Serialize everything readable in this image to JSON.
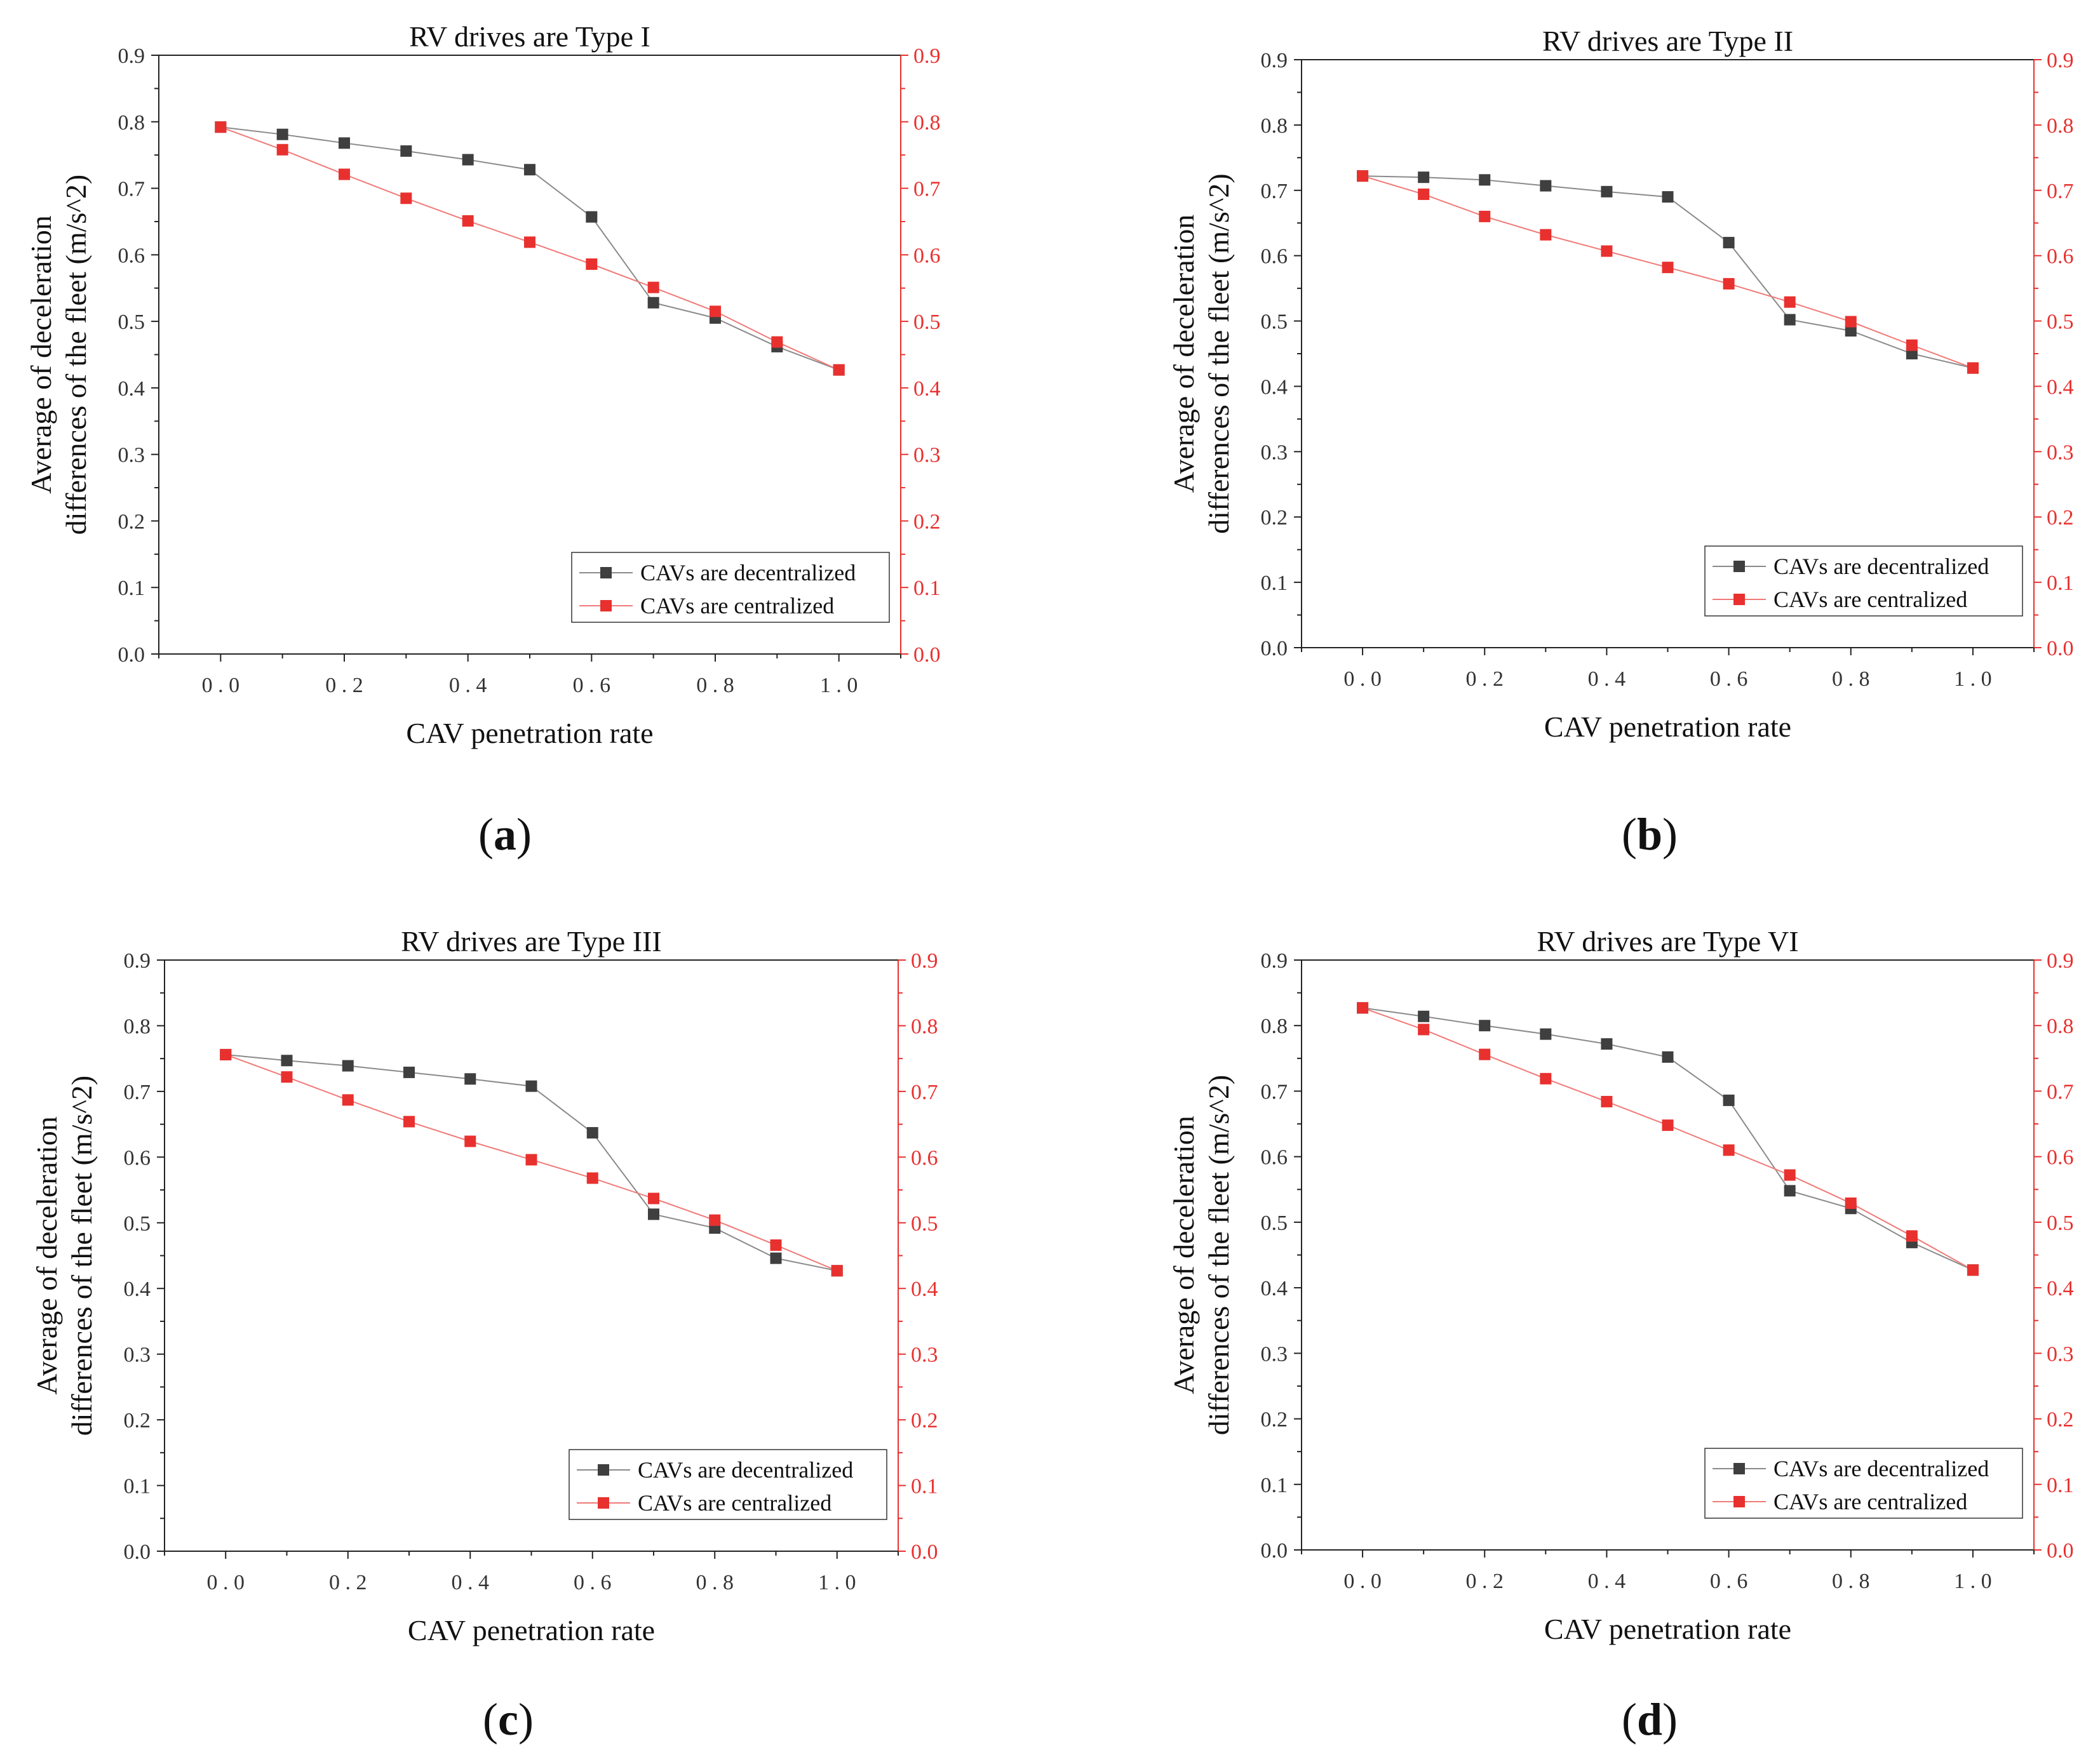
{
  "colors": {
    "decentralized": "#3f3f3f",
    "centralized": "#e8312f",
    "line_dec": "#8a8a8a",
    "line_cen": "#f07a78"
  },
  "chart_data": [
    {
      "type": "line",
      "panel": "a",
      "title": "RV drives are Type I",
      "xlabel": "CAV penetration rate",
      "ylabel": [
        "Average of deceleration",
        "differences of the fleet (m/s^2)"
      ],
      "xlim": [
        -0.1,
        1.1
      ],
      "ylim": [
        0.0,
        0.9
      ],
      "y2lim": [
        0.0,
        0.9
      ],
      "x": [
        0.0,
        0.1,
        0.2,
        0.3,
        0.4,
        0.5,
        0.6,
        0.7,
        0.8,
        0.9,
        1.0
      ],
      "xticks": [
        "0.0",
        "0.2",
        "0.4",
        "0.6",
        "0.8",
        "1.0"
      ],
      "yticks": [
        "0.0",
        "0.1",
        "0.2",
        "0.3",
        "0.4",
        "0.5",
        "0.6",
        "0.7",
        "0.8",
        "0.9"
      ],
      "legend": "bottom-right",
      "series": [
        {
          "name": "CAVs are decentralized",
          "values": [
            0.792,
            0.781,
            0.768,
            0.756,
            0.743,
            0.728,
            0.657,
            0.528,
            0.505,
            0.462,
            0.427
          ]
        },
        {
          "name": "CAVs are centralized",
          "values": [
            0.792,
            0.758,
            0.721,
            0.685,
            0.651,
            0.619,
            0.586,
            0.551,
            0.515,
            0.469,
            0.427
          ]
        }
      ]
    },
    {
      "type": "line",
      "panel": "b",
      "title": "RV drives are Type II",
      "xlabel": "CAV penetration rate",
      "ylabel": [
        "Average of deceleration",
        "differences of the fleet (m/s^2)"
      ],
      "xlim": [
        -0.1,
        1.1
      ],
      "ylim": [
        0.0,
        0.9
      ],
      "y2lim": [
        0.0,
        0.9
      ],
      "x": [
        0.0,
        0.1,
        0.2,
        0.3,
        0.4,
        0.5,
        0.6,
        0.7,
        0.8,
        0.9,
        1.0
      ],
      "xticks": [
        "0.0",
        "0.2",
        "0.4",
        "0.6",
        "0.8",
        "1.0"
      ],
      "yticks": [
        "0.0",
        "0.1",
        "0.2",
        "0.3",
        "0.4",
        "0.5",
        "0.6",
        "0.7",
        "0.8",
        "0.9"
      ],
      "legend": "bottom-right",
      "series": [
        {
          "name": "CAVs are decentralized",
          "values": [
            0.722,
            0.72,
            0.716,
            0.707,
            0.698,
            0.69,
            0.62,
            0.502,
            0.485,
            0.45,
            0.428
          ]
        },
        {
          "name": "CAVs are centralized",
          "values": [
            0.722,
            0.694,
            0.66,
            0.632,
            0.607,
            0.582,
            0.557,
            0.529,
            0.499,
            0.463,
            0.428
          ]
        }
      ]
    },
    {
      "type": "line",
      "panel": "c",
      "title": "RV drives are Type III",
      "xlabel": "CAV penetration rate",
      "ylabel": [
        "Average of deceleration",
        "differences of the fleet (m/s^2)"
      ],
      "xlim": [
        -0.1,
        1.1
      ],
      "ylim": [
        0.0,
        0.9
      ],
      "y2lim": [
        0.0,
        0.9
      ],
      "x": [
        0.0,
        0.1,
        0.2,
        0.3,
        0.4,
        0.5,
        0.6,
        0.7,
        0.8,
        0.9,
        1.0
      ],
      "xticks": [
        "0.0",
        "0.2",
        "0.4",
        "0.6",
        "0.8",
        "1.0"
      ],
      "yticks": [
        "0.0",
        "0.1",
        "0.2",
        "0.3",
        "0.4",
        "0.5",
        "0.6",
        "0.7",
        "0.8",
        "0.9"
      ],
      "legend": "bottom-right",
      "series": [
        {
          "name": "CAVs are decentralized",
          "values": [
            0.756,
            0.747,
            0.739,
            0.729,
            0.719,
            0.708,
            0.637,
            0.513,
            0.492,
            0.446,
            0.427
          ]
        },
        {
          "name": "CAVs are centralized",
          "values": [
            0.756,
            0.722,
            0.687,
            0.654,
            0.624,
            0.596,
            0.568,
            0.537,
            0.504,
            0.466,
            0.427
          ]
        }
      ]
    },
    {
      "type": "line",
      "panel": "d",
      "title": "RV drives are Type VI",
      "xlabel": "CAV penetration rate",
      "ylabel": [
        "Average of deceleration",
        "differences of the fleet (m/s^2)"
      ],
      "xlim": [
        -0.1,
        1.1
      ],
      "ylim": [
        0.0,
        0.9
      ],
      "y2lim": [
        0.0,
        0.9
      ],
      "x": [
        0.0,
        0.1,
        0.2,
        0.3,
        0.4,
        0.5,
        0.6,
        0.7,
        0.8,
        0.9,
        1.0
      ],
      "xticks": [
        "0.0",
        "0.2",
        "0.4",
        "0.6",
        "0.8",
        "1.0"
      ],
      "yticks": [
        "0.0",
        "0.1",
        "0.2",
        "0.3",
        "0.4",
        "0.5",
        "0.6",
        "0.7",
        "0.8",
        "0.9"
      ],
      "legend": "bottom-right",
      "series": [
        {
          "name": "CAVs are decentralized",
          "values": [
            0.827,
            0.814,
            0.8,
            0.787,
            0.772,
            0.752,
            0.686,
            0.548,
            0.521,
            0.469,
            0.427
          ]
        },
        {
          "name": "CAVs are centralized",
          "values": [
            0.827,
            0.794,
            0.756,
            0.719,
            0.684,
            0.648,
            0.61,
            0.572,
            0.529,
            0.479,
            0.427
          ]
        }
      ]
    }
  ],
  "captions": {
    "a": "a",
    "b": "b",
    "c": "c",
    "d": "d"
  }
}
